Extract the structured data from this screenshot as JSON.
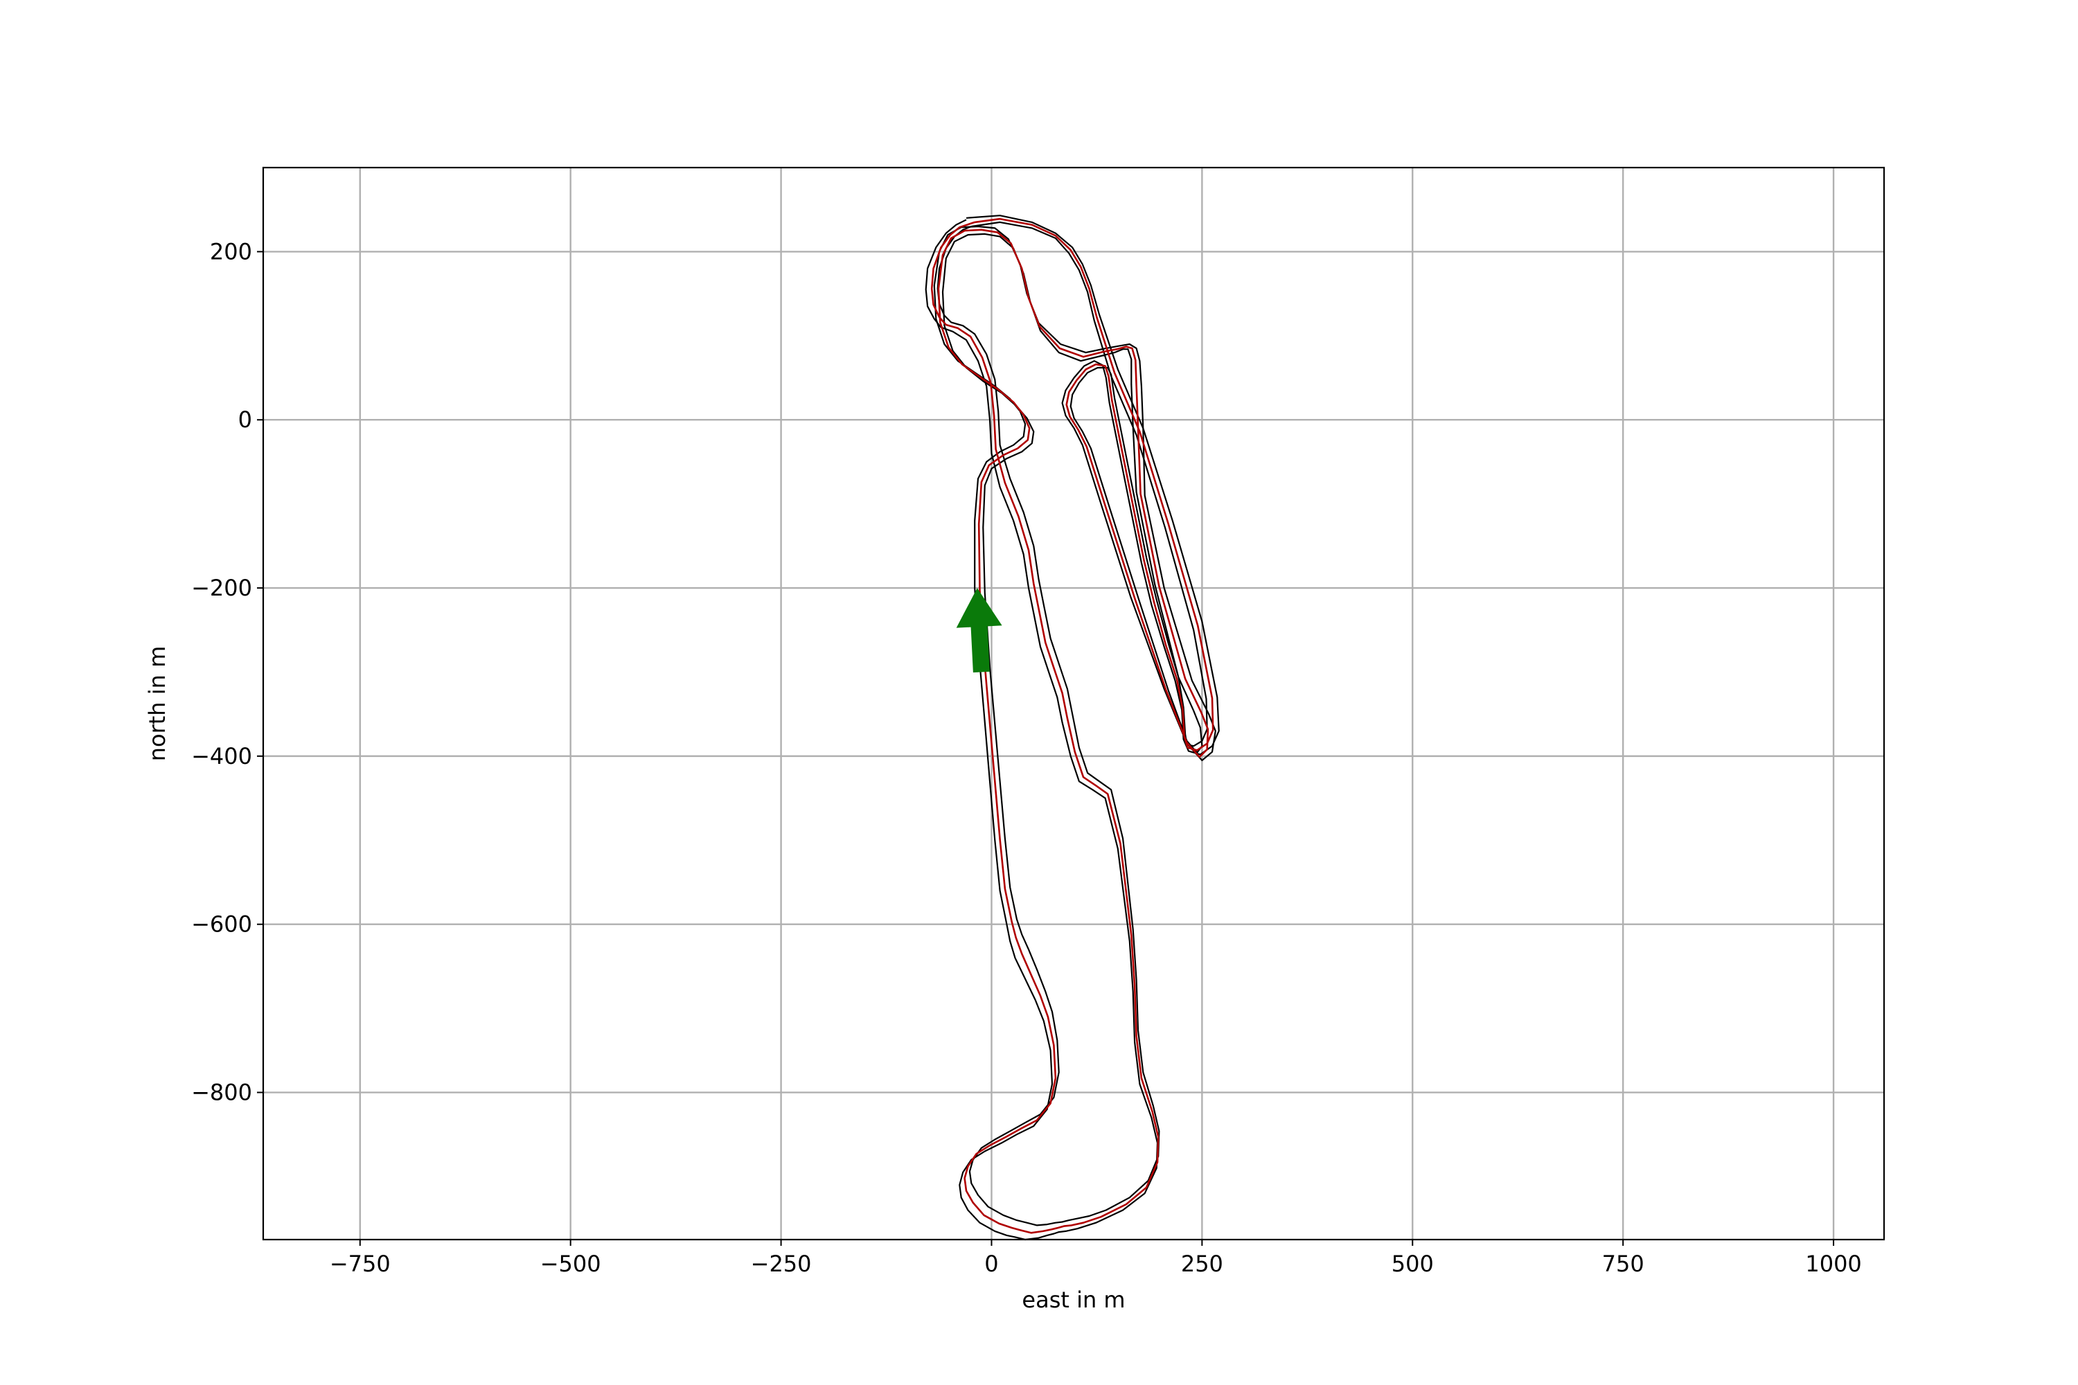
{
  "chart_data": {
    "type": "line",
    "title": "",
    "xlabel": "east in m",
    "ylabel": "north in m",
    "xlim": [
      -865,
      1060
    ],
    "ylim": [
      -975,
      300
    ],
    "xticks": [
      -750,
      -500,
      -250,
      0,
      250,
      500,
      750,
      1000
    ],
    "yticks": [
      -800,
      -600,
      -400,
      -200,
      0,
      200
    ],
    "xtick_labels": [
      "−750",
      "−500",
      "−250",
      "0",
      "250",
      "500",
      "750",
      "1000"
    ],
    "ytick_labels": [
      "−800",
      "−600",
      "−400",
      "−200",
      "0",
      "200"
    ],
    "grid": true,
    "aspect": "equal",
    "colors": {
      "track_border": "#000000",
      "race_line": "#b00000",
      "start_arrow": "#0a7a0a"
    },
    "series": [
      {
        "role": "outer-border",
        "x": [
          -30,
          10,
          48,
          76,
          96,
          108,
          118,
          128,
          150,
          180,
          215,
          250,
          268,
          270,
          262,
          248,
          234,
          228,
          226,
          218,
          205,
          190,
          178,
          168,
          158,
          148,
          140,
          136,
          132,
          122,
          110,
          98,
          88,
          84,
          88,
          98,
          108,
          130,
          165,
          205,
          232,
          250,
          262,
          266,
          258,
          238,
          205,
          182,
          180,
          178,
          176,
          172,
          164,
          152,
          136,
          112,
          82,
          56,
          42,
          34,
          20,
          4,
          -16,
          -36,
          -52,
          -62,
          -68,
          -66,
          -56,
          -40,
          -18,
          4,
          22,
          34,
          40,
          38,
          26,
          10,
          -6,
          -16,
          -20,
          -20,
          -14,
          -8,
          -2,
          4,
          10,
          18,
          22,
          28,
          40,
          52,
          62,
          70,
          72,
          66,
          50,
          30,
          12,
          -8,
          -24,
          -34,
          -38,
          -36,
          -28,
          -14,
          4,
          18,
          28,
          40,
          56,
          66,
          74,
          80,
          88,
          102,
          124,
          156,
          182,
          196,
          197,
          190,
          176,
          170,
          168,
          164,
          150,
          135,
          120,
          104,
          94,
          84,
          78,
          68,
          58,
          50,
          44,
          38,
          26,
          10,
          0,
          -2,
          -6,
          -16,
          -30,
          -46,
          -60,
          -68,
          -76,
          -78,
          -76,
          -66,
          -54,
          -42,
          -30
        ],
        "y": [
          240,
          243,
          235,
          222,
          205,
          185,
          160,
          125,
          60,
          -10,
          -120,
          -240,
          -330,
          -370,
          -388,
          -398,
          -394,
          -380,
          -345,
          -310,
          -270,
          -220,
          -170,
          -120,
          -70,
          -20,
          20,
          50,
          65,
          70,
          64,
          50,
          35,
          20,
          5,
          -10,
          -30,
          -100,
          -210,
          -320,
          -385,
          -405,
          -395,
          -370,
          -350,
          -310,
          -200,
          -90,
          -10,
          40,
          70,
          85,
          90,
          88,
          85,
          80,
          90,
          115,
          150,
          185,
          215,
          228,
          230,
          229,
          220,
          200,
          160,
          120,
          90,
          70,
          55,
          40,
          25,
          10,
          -5,
          -20,
          -30,
          -38,
          -50,
          -70,
          -120,
          -200,
          -290,
          -360,
          -430,
          -500,
          -560,
          -600,
          -620,
          -640,
          -665,
          -690,
          -715,
          -750,
          -790,
          -820,
          -840,
          -850,
          -860,
          -870,
          -880,
          -895,
          -910,
          -925,
          -940,
          -955,
          -965,
          -970,
          -972,
          -975,
          -973,
          -970,
          -968,
          -966,
          -965,
          -962,
          -955,
          -940,
          -920,
          -890,
          -860,
          -830,
          -790,
          -740,
          -680,
          -620,
          -510,
          -450,
          -440,
          -430,
          -400,
          -360,
          -330,
          -300,
          -270,
          -230,
          -200,
          -160,
          -120,
          -80,
          -40,
          0,
          40,
          70,
          95,
          105,
          110,
          120,
          135,
          155,
          180,
          205,
          222,
          232,
          238
        ]
      },
      {
        "role": "inner-border",
        "x": [
          -24,
          10,
          48,
          76,
          92,
          104,
          114,
          122,
          142,
          172,
          206,
          240,
          255,
          256,
          250,
          240,
          232,
          230,
          228,
          222,
          210,
          196,
          184,
          174,
          164,
          154,
          146,
          142,
          138,
          126,
          114,
          104,
          96,
          94,
          98,
          108,
          118,
          140,
          175,
          210,
          232,
          244,
          250,
          248,
          240,
          222,
          194,
          172,
          168,
          166,
          166,
          162,
          156,
          146,
          130,
          106,
          80,
          58,
          46,
          38,
          26,
          10,
          -8,
          -28,
          -44,
          -54,
          -58,
          -56,
          -46,
          -30,
          -10,
          12,
          30,
          42,
          50,
          48,
          36,
          18,
          0,
          -8,
          -10,
          -8,
          -2,
          4,
          10,
          16,
          22,
          30,
          36,
          44,
          54,
          64,
          72,
          78,
          80,
          74,
          58,
          40,
          22,
          4,
          -12,
          -22,
          -26,
          -24,
          -16,
          -4,
          14,
          30,
          42,
          54,
          66,
          76,
          84,
          92,
          102,
          116,
          136,
          164,
          186,
          198,
          199,
          192,
          180,
          174,
          172,
          168,
          156,
          142,
          128,
          114,
          104,
          96,
          90,
          80,
          70,
          62,
          56,
          50,
          38,
          22,
          10,
          8,
          4,
          -6,
          -20,
          -34,
          -48,
          -56,
          -62,
          -64,
          -62,
          -54,
          -44,
          -34,
          -24
        ],
        "y": [
          230,
          235,
          228,
          216,
          198,
          178,
          152,
          118,
          52,
          -18,
          -128,
          -250,
          -332,
          -368,
          -382,
          -388,
          -386,
          -374,
          -342,
          -306,
          -266,
          -214,
          -164,
          -114,
          -64,
          -14,
          26,
          54,
          62,
          62,
          56,
          44,
          30,
          16,
          2,
          -14,
          -34,
          -104,
          -214,
          -322,
          -382,
          -396,
          -388,
          -366,
          -346,
          -306,
          -196,
          -86,
          -8,
          42,
          72,
          84,
          84,
          80,
          76,
          70,
          80,
          106,
          140,
          174,
          204,
          218,
          221,
          220,
          212,
          192,
          152,
          112,
          82,
          62,
          46,
          32,
          16,
          2,
          -14,
          -28,
          -38,
          -46,
          -58,
          -78,
          -128,
          -206,
          -294,
          -362,
          -430,
          -498,
          -556,
          -594,
          -612,
          -630,
          -654,
          -680,
          -704,
          -738,
          -776,
          -806,
          -826,
          -836,
          -846,
          -856,
          -866,
          -880,
          -894,
          -908,
          -922,
          -936,
          -946,
          -952,
          -955,
          -958,
          -957,
          -955,
          -954,
          -952,
          -950,
          -947,
          -940,
          -925,
          -905,
          -876,
          -846,
          -816,
          -776,
          -726,
          -666,
          -606,
          -498,
          -440,
          -430,
          -420,
          -390,
          -350,
          -320,
          -290,
          -260,
          -220,
          -190,
          -150,
          -110,
          -70,
          -30,
          10,
          48,
          78,
          102,
          112,
          116,
          124,
          138,
          156,
          180,
          204,
          218,
          226,
          230
        ]
      },
      {
        "role": "race-line",
        "x": [
          -20,
          10,
          48,
          76,
          94,
          106,
          116,
          125,
          146,
          176,
          210,
          245,
          262,
          263,
          256,
          244,
          233,
          229,
          227,
          220,
          207,
          193,
          181,
          171,
          161,
          151,
          143,
          139,
          135,
          124,
          112,
          101,
          92,
          89,
          93,
          103,
          113,
          135,
          170,
          207,
          232,
          247,
          256,
          257,
          249,
          230,
          199,
          177,
          174,
          172,
          171,
          167,
          160,
          149,
          133,
          109,
          81,
          57,
          44,
          36,
          23,
          7,
          -12,
          -32,
          -48,
          -58,
          -63,
          -61,
          -51,
          -35,
          -14,
          8,
          26,
          38,
          45,
          43,
          31,
          14,
          -3,
          -12,
          -15,
          -14,
          -8,
          -2,
          4,
          10,
          16,
          24,
          29,
          36,
          47,
          58,
          67,
          74,
          76,
          70,
          54,
          35,
          17,
          -2,
          -18,
          -28,
          -32,
          -30,
          -22,
          -9,
          9,
          24,
          35,
          47,
          61,
          71,
          79,
          86,
          95,
          109,
          130,
          160,
          184,
          197,
          198,
          191,
          178,
          172,
          170,
          166,
          153,
          138,
          124,
          109,
          99,
          90,
          84,
          74,
          64,
          56,
          50,
          44,
          32,
          16,
          5,
          3,
          -1,
          -11,
          -25,
          -40,
          -54,
          -62,
          -69,
          -71,
          -69,
          -60,
          -49,
          -38,
          -20
        ],
        "y": [
          235,
          239,
          232,
          219,
          202,
          182,
          156,
          122,
          56,
          -14,
          -124,
          -245,
          -331,
          -369,
          -385,
          -393,
          -390,
          -377,
          -344,
          -308,
          -268,
          -217,
          -167,
          -117,
          -67,
          -17,
          23,
          52,
          64,
          66,
          60,
          47,
          33,
          18,
          4,
          -12,
          -32,
          -102,
          -212,
          -321,
          -384,
          -401,
          -392,
          -368,
          -348,
          -308,
          -198,
          -88,
          -9,
          41,
          71,
          85,
          87,
          84,
          81,
          75,
          85,
          111,
          145,
          180,
          210,
          223,
          226,
          225,
          216,
          196,
          156,
          116,
          86,
          66,
          51,
          36,
          21,
          6,
          -10,
          -24,
          -34,
          -42,
          -54,
          -74,
          -124,
          -203,
          -292,
          -361,
          -430,
          -499,
          -558,
          -597,
          -616,
          -635,
          -660,
          -685,
          -710,
          -744,
          -783,
          -813,
          -833,
          -843,
          -853,
          -863,
          -873,
          -888,
          -902,
          -917,
          -931,
          -946,
          -956,
          -961,
          -964,
          -967,
          -965,
          -963,
          -961,
          -959,
          -958,
          -955,
          -948,
          -933,
          -913,
          -883,
          -853,
          -823,
          -783,
          -733,
          -673,
          -613,
          -504,
          -445,
          -435,
          -425,
          -395,
          -355,
          -325,
          -295,
          -265,
          -225,
          -195,
          -155,
          -115,
          -75,
          -35,
          5,
          44,
          74,
          99,
          109,
          113,
          122,
          137,
          156,
          180,
          205,
          220,
          229,
          235
        ]
      }
    ],
    "start_arrow": {
      "tail": [
        -12,
        -300
      ],
      "head": [
        -17,
        -200
      ]
    }
  }
}
